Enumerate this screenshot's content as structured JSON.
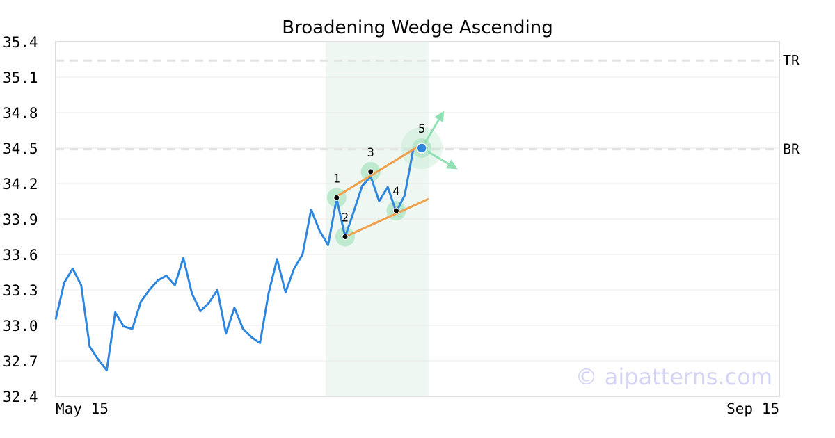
{
  "chart_data": {
    "type": "line",
    "title": "Broadening Wedge Ascending",
    "watermark": "© aipatterns.com",
    "x_labels": [
      "May 15",
      "Sep 15"
    ],
    "ylim": [
      32.4,
      35.4
    ],
    "y_ticks": [
      32.4,
      32.7,
      33.0,
      33.3,
      33.6,
      33.9,
      34.2,
      34.5,
      34.8,
      35.1,
      35.4
    ],
    "y_tick_labels": [
      "32.4",
      "32.7",
      "33.0",
      "33.3",
      "33.6",
      "33.9",
      "34.2",
      "34.5",
      "34.8",
      "35.1",
      "35.4"
    ],
    "grid": true,
    "num_points": 86,
    "series": [
      {
        "color": "#2e86de",
        "points": [
          [
            0,
            33.05
          ],
          [
            1,
            33.36
          ],
          [
            2,
            33.48
          ],
          [
            3,
            33.34
          ],
          [
            4,
            32.82
          ],
          [
            5,
            32.71
          ],
          [
            6,
            32.62
          ],
          [
            7,
            33.11
          ],
          [
            8,
            32.99
          ],
          [
            9,
            32.97
          ],
          [
            10,
            33.2
          ],
          [
            11,
            33.3
          ],
          [
            12,
            33.38
          ],
          [
            13,
            33.42
          ],
          [
            14,
            33.34
          ],
          [
            15,
            33.57
          ],
          [
            16,
            33.27
          ],
          [
            17,
            33.12
          ],
          [
            18,
            33.19
          ],
          [
            19,
            33.3
          ],
          [
            20,
            32.93
          ],
          [
            21,
            33.15
          ],
          [
            22,
            32.97
          ],
          [
            23,
            32.9
          ],
          [
            24,
            32.85
          ],
          [
            25,
            33.27
          ],
          [
            26,
            33.56
          ],
          [
            27,
            33.28
          ],
          [
            28,
            33.48
          ],
          [
            29,
            33.6
          ],
          [
            30,
            33.98
          ],
          [
            31,
            33.8
          ],
          [
            32,
            33.68
          ],
          [
            33,
            34.07
          ],
          [
            34,
            33.75
          ],
          [
            35,
            33.96
          ],
          [
            36,
            34.18
          ],
          [
            37,
            34.26
          ],
          [
            38,
            34.05
          ],
          [
            39,
            34.17
          ],
          [
            40,
            33.96
          ],
          [
            41,
            34.1
          ],
          [
            42,
            34.49
          ]
        ]
      }
    ],
    "hlines": [
      {
        "label": "TR",
        "value": 35.24,
        "color": "#e3e3e3"
      },
      {
        "label": "BR",
        "value": 34.49,
        "color": "#e3e3e3"
      }
    ],
    "pattern_band": {
      "x_start": 31.7,
      "x_end": 43.8,
      "color": "#eef7f2"
    },
    "trendlines": [
      {
        "from": [
          33.0,
          34.09
        ],
        "to": [
          42.5,
          34.51
        ],
        "color": "#f0a04b"
      },
      {
        "from": [
          34.0,
          33.75
        ],
        "to": [
          43.8,
          34.07
        ],
        "color": "#f0a04b"
      }
    ],
    "pivots": [
      {
        "label": "1",
        "x": 33.0,
        "y": 34.08
      },
      {
        "label": "2",
        "x": 34.0,
        "y": 33.75
      },
      {
        "label": "3",
        "x": 37.0,
        "y": 34.3
      },
      {
        "label": "4",
        "x": 40.0,
        "y": 33.97
      },
      {
        "label": "5",
        "x": 43.0,
        "y": 34.5
      }
    ],
    "arrows": [
      {
        "from": [
          43.0,
          34.5
        ],
        "to": [
          45.5,
          34.8
        ],
        "color": "#8fe0b3"
      },
      {
        "from": [
          43.0,
          34.5
        ],
        "to": [
          47.0,
          34.33
        ],
        "color": "#8fe0b3"
      }
    ],
    "colors": {
      "line": "#2e86de",
      "grid": "#e8e8e8",
      "frame": "#dddddd",
      "pivot_halo": "#b4e6c8",
      "pivot_dot": "#000000",
      "last_point": "#2e86de"
    }
  }
}
